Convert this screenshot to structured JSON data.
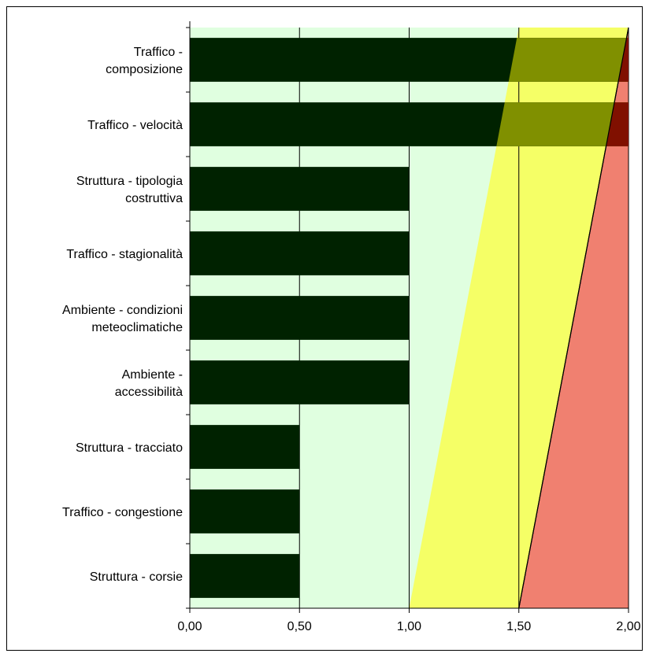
{
  "chart_data": {
    "type": "bar",
    "orientation": "horizontal",
    "categories": [
      [
        "Traffico -",
        "composizione"
      ],
      [
        "Traffico - velocità"
      ],
      [
        "Struttura - tipologia",
        "costruttiva"
      ],
      [
        "Traffico - stagionalità"
      ],
      [
        "Ambiente - condizioni",
        "meteoclimatiche"
      ],
      [
        "Ambiente -",
        "accessibilità"
      ],
      [
        "Struttura - tracciato"
      ],
      [
        "Traffico - congestione"
      ],
      [
        "Struttura - corsie"
      ]
    ],
    "values": [
      2.0,
      2.0,
      1.0,
      1.0,
      1.0,
      1.0,
      0.5,
      0.5,
      0.5
    ],
    "xlim": [
      0,
      2
    ],
    "xticks": [
      0,
      0.5,
      1,
      1.5,
      2
    ],
    "xtick_labels": [
      "0,00",
      "0,50",
      "1,00",
      "1,50",
      "2,00"
    ],
    "title": "",
    "xlabel": "",
    "ylabel": "",
    "grid": "vertical",
    "zones": [
      {
        "name": "green",
        "bottom_from": 0,
        "top_from": 0
      },
      {
        "name": "yellow",
        "bottom_from": 1.0,
        "top_from": 1.5
      },
      {
        "name": "red",
        "bottom_from": 1.5,
        "top_from": 2.0
      }
    ],
    "colors": {
      "bar": "#002200",
      "zone_green": "#e0ffe0",
      "zone_yellow": "#f5ff66",
      "zone_red": "#f08070",
      "bar_in_yellow": "#809000",
      "bar_in_red": "#801000"
    }
  }
}
